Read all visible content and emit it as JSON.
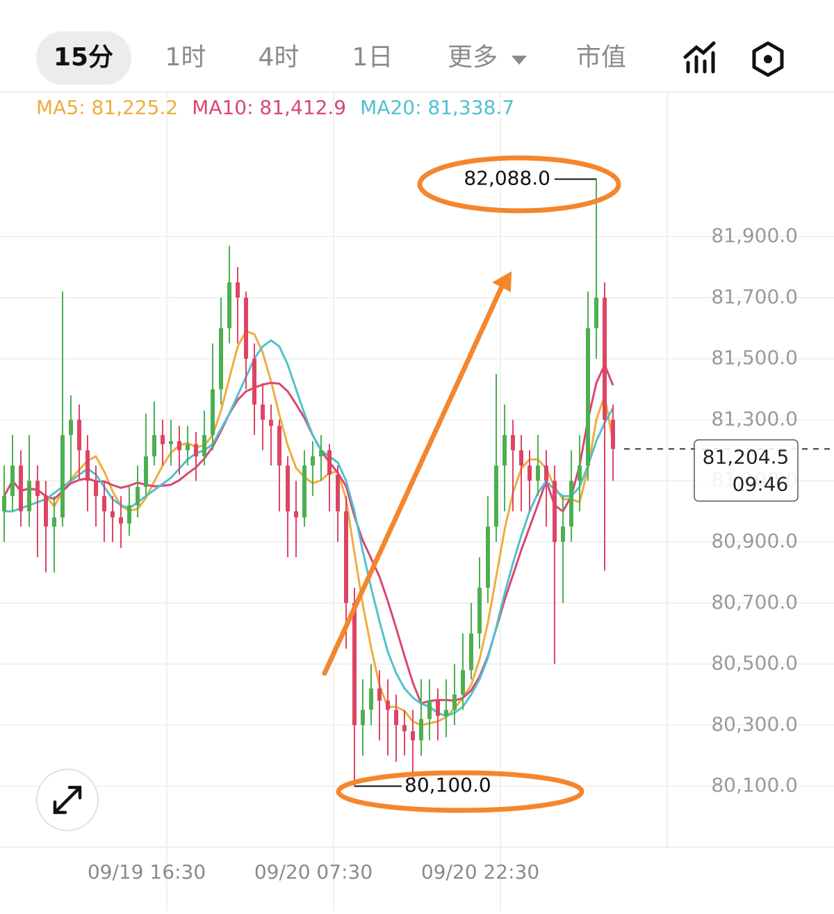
{
  "tabs": {
    "items": [
      "15分",
      "1时",
      "4时",
      "1日",
      "更多",
      "市值"
    ],
    "active": 0
  },
  "chart_data": {
    "type": "candlestick",
    "categories": [
      null,
      null,
      null,
      null,
      null,
      null,
      null,
      null,
      null,
      null,
      null,
      null,
      null,
      null,
      null,
      null,
      null,
      null,
      null,
      null,
      "09/19 16:30",
      null,
      null,
      null,
      null,
      null,
      null,
      null,
      null,
      null,
      null,
      null,
      null,
      null,
      null,
      null,
      null,
      null,
      null,
      null,
      "09/20 07:30",
      null,
      null,
      null,
      null,
      null,
      null,
      null,
      null,
      null,
      null,
      null,
      null,
      null,
      null,
      null,
      null,
      null,
      null,
      null,
      "09/20 22:30",
      null,
      null,
      null,
      null,
      null,
      null,
      null,
      null,
      null,
      null,
      null,
      null,
      null
    ],
    "open": [
      81000,
      81050,
      81150,
      81000,
      81100,
      81050,
      80950,
      80980,
      81250,
      81300,
      81200,
      81100,
      81050,
      81000,
      80980,
      80960,
      81020,
      81080,
      81180,
      81250,
      81220,
      81230,
      81200,
      81220,
      81180,
      81250,
      81400,
      81600,
      81750,
      81700,
      81500,
      81350,
      81300,
      81280,
      81150,
      81000,
      80980,
      81150,
      81180,
      81200,
      81120,
      81000,
      80700,
      80300,
      80350,
      80420,
      80380,
      80350,
      80300,
      80280,
      80250,
      80320,
      80380,
      80330,
      80350,
      80400,
      80480,
      80600,
      80750,
      80950,
      81150,
      81250,
      81200,
      81150,
      81100,
      81150,
      81100,
      80900,
      80950,
      81100,
      81150,
      81600,
      81700,
      81300
    ],
    "high": [
      81150,
      81250,
      81200,
      81250,
      81150,
      81100,
      81050,
      81720,
      81380,
      81350,
      81250,
      81150,
      81100,
      81050,
      81050,
      81080,
      81150,
      81320,
      81360,
      81300,
      81300,
      81280,
      81280,
      81260,
      81330,
      81550,
      81700,
      81870,
      81800,
      81720,
      81550,
      81420,
      81350,
      81300,
      81180,
      81100,
      81200,
      81230,
      81250,
      81220,
      81150,
      81050,
      80750,
      80450,
      80500,
      80480,
      80450,
      80400,
      80350,
      80350,
      80450,
      80450,
      80420,
      80450,
      80500,
      80600,
      80700,
      80850,
      81050,
      81450,
      81350,
      81300,
      81250,
      81200,
      81250,
      81200,
      81150,
      81050,
      81200,
      81250,
      81720,
      82088,
      81750,
      81350
    ],
    "low": [
      80900,
      81000,
      80950,
      80950,
      80850,
      80800,
      80800,
      80950,
      81100,
      81100,
      81000,
      80950,
      80900,
      80900,
      80880,
      80920,
      80980,
      81050,
      81150,
      81150,
      81150,
      81120,
      81150,
      81100,
      81150,
      81200,
      81350,
      81550,
      81550,
      81400,
      81250,
      81200,
      81150,
      81000,
      80850,
      80850,
      80950,
      81050,
      81100,
      81000,
      80900,
      80550,
      80100,
      80200,
      80300,
      80250,
      80200,
      80180,
      80200,
      80120,
      80200,
      80250,
      80250,
      80260,
      80300,
      80350,
      80450,
      80550,
      80700,
      80900,
      81000,
      81000,
      81000,
      81000,
      81050,
      80950,
      80500,
      80700,
      80900,
      81000,
      81100,
      81500,
      80806,
      81100
    ],
    "close": [
      81050,
      81150,
      81000,
      81100,
      81050,
      80950,
      80980,
      81250,
      81300,
      81200,
      81100,
      81050,
      81000,
      80980,
      80960,
      81020,
      81080,
      81180,
      81250,
      81220,
      81230,
      81200,
      81220,
      81180,
      81250,
      81400,
      81600,
      81750,
      81700,
      81500,
      81350,
      81300,
      81280,
      81150,
      81000,
      80980,
      81150,
      81180,
      81200,
      81120,
      81000,
      80700,
      80300,
      80350,
      80420,
      80380,
      80350,
      80300,
      80280,
      80250,
      80320,
      80380,
      80330,
      80350,
      80400,
      80480,
      80600,
      80750,
      80950,
      81150,
      81250,
      81200,
      81150,
      81100,
      81150,
      81100,
      80900,
      80950,
      81100,
      81150,
      81600,
      81700,
      81300,
      81204.5
    ],
    "up_color": "#4caf50",
    "down_color": "#de4463",
    "moving_averages": [
      {
        "name": "MA5",
        "legend": "MA5: 81,225.2",
        "color": "#f0ac3c",
        "values": [
          81050,
          81100,
          81067,
          81075,
          81070,
          81050,
          81016,
          81066,
          81106,
          81136,
          81166,
          81180,
          81130,
          81066,
          81018,
          81002,
          81008,
          81044,
          81098,
          81150,
          81192,
          81216,
          81224,
          81210,
          81216,
          81250,
          81330,
          81436,
          81540,
          81590,
          81580,
          81520,
          81426,
          81316,
          81216,
          81142,
          81112,
          81092,
          81102,
          81126,
          81130,
          81040,
          80864,
          80694,
          80554,
          80430,
          80360,
          80360,
          80346,
          80312,
          80300,
          80306,
          80312,
          80326,
          80356,
          80388,
          80432,
          80516,
          80636,
          80786,
          80940,
          81060,
          81140,
          81170,
          81170,
          81140,
          81080,
          81040,
          81040,
          81030,
          81140,
          81300,
          81380,
          81225.2
        ]
      },
      {
        "name": "MA10",
        "legend": "MA10: 81,412.9",
        "color": "#d9466f",
        "values": [
          81050,
          81100,
          81067,
          81075,
          81070,
          81050,
          81040,
          81066,
          81092,
          81103,
          81108,
          81098,
          81098,
          81086,
          81077,
          81084,
          81094,
          81087,
          81082,
          81084,
          81087,
          81102,
          81124,
          81144,
          81173,
          81211,
          81263,
          81320,
          81365,
          81393,
          81405,
          81415,
          81421,
          81418,
          81393,
          81351,
          81306,
          81249,
          81199,
          81161,
          81126,
          81082,
          80984,
          80904,
          80846,
          80786,
          80706,
          80618,
          80526,
          80439,
          80371,
          80379,
          80382,
          80382,
          80380,
          80389,
          80414,
          80459,
          80526,
          80616,
          80709,
          80791,
          80873,
          80948,
          81023,
          81100,
          81020,
          81000,
          81050,
          81150,
          81300,
          81420,
          81480,
          81412.9
        ]
      },
      {
        "name": "MA20",
        "legend": "MA20: 81,338.7",
        "color": "#4fc1cf",
        "values": [
          81000,
          81000,
          81010,
          81020,
          81030,
          81040,
          81060,
          81080,
          81100,
          81120,
          81140,
          81120,
          81080,
          81040,
          81020,
          81010,
          81030,
          81050,
          81070,
          81090,
          81110,
          81140,
          81170,
          81190,
          81200,
          81220,
          81270,
          81320,
          81380,
          81440,
          81500,
          81540,
          81560,
          81540,
          81480,
          81400,
          81320,
          81250,
          81200,
          81180,
          81160,
          81100,
          81000,
          80870,
          80750,
          80640,
          80540,
          80470,
          80420,
          80390,
          80370,
          80360,
          80340,
          80330,
          80340,
          80360,
          80400,
          80450,
          80520,
          80620,
          80730,
          80830,
          80920,
          81000,
          81060,
          81100,
          81070,
          81050,
          81050,
          81080,
          81150,
          81230,
          81290,
          81338.7
        ]
      }
    ],
    "ylim": [
      79900,
      82374
    ],
    "yticks": [
      {
        "value": 81900,
        "label": "81,900.0"
      },
      {
        "value": 81700,
        "label": "81,700.0"
      },
      {
        "value": 81500,
        "label": "81,500.0"
      },
      {
        "value": 81300,
        "label": "81,300.0"
      },
      {
        "value": 81100,
        "label": "81,100.0"
      },
      {
        "value": 80900,
        "label": "80,900.0"
      },
      {
        "value": 80700,
        "label": "80,700.0"
      },
      {
        "value": 80500,
        "label": "80,500.0"
      },
      {
        "value": 80300,
        "label": "80,300.0"
      },
      {
        "value": 80100,
        "label": "80,100.0"
      }
    ],
    "grid": true,
    "high_marker": {
      "value": 82088,
      "label": "82,088.0"
    },
    "low_marker": {
      "value": 80100,
      "label": "80,100.0"
    },
    "last_price": {
      "value": 81204.5,
      "label": "81,204.5"
    },
    "countdown": "09:46"
  }
}
